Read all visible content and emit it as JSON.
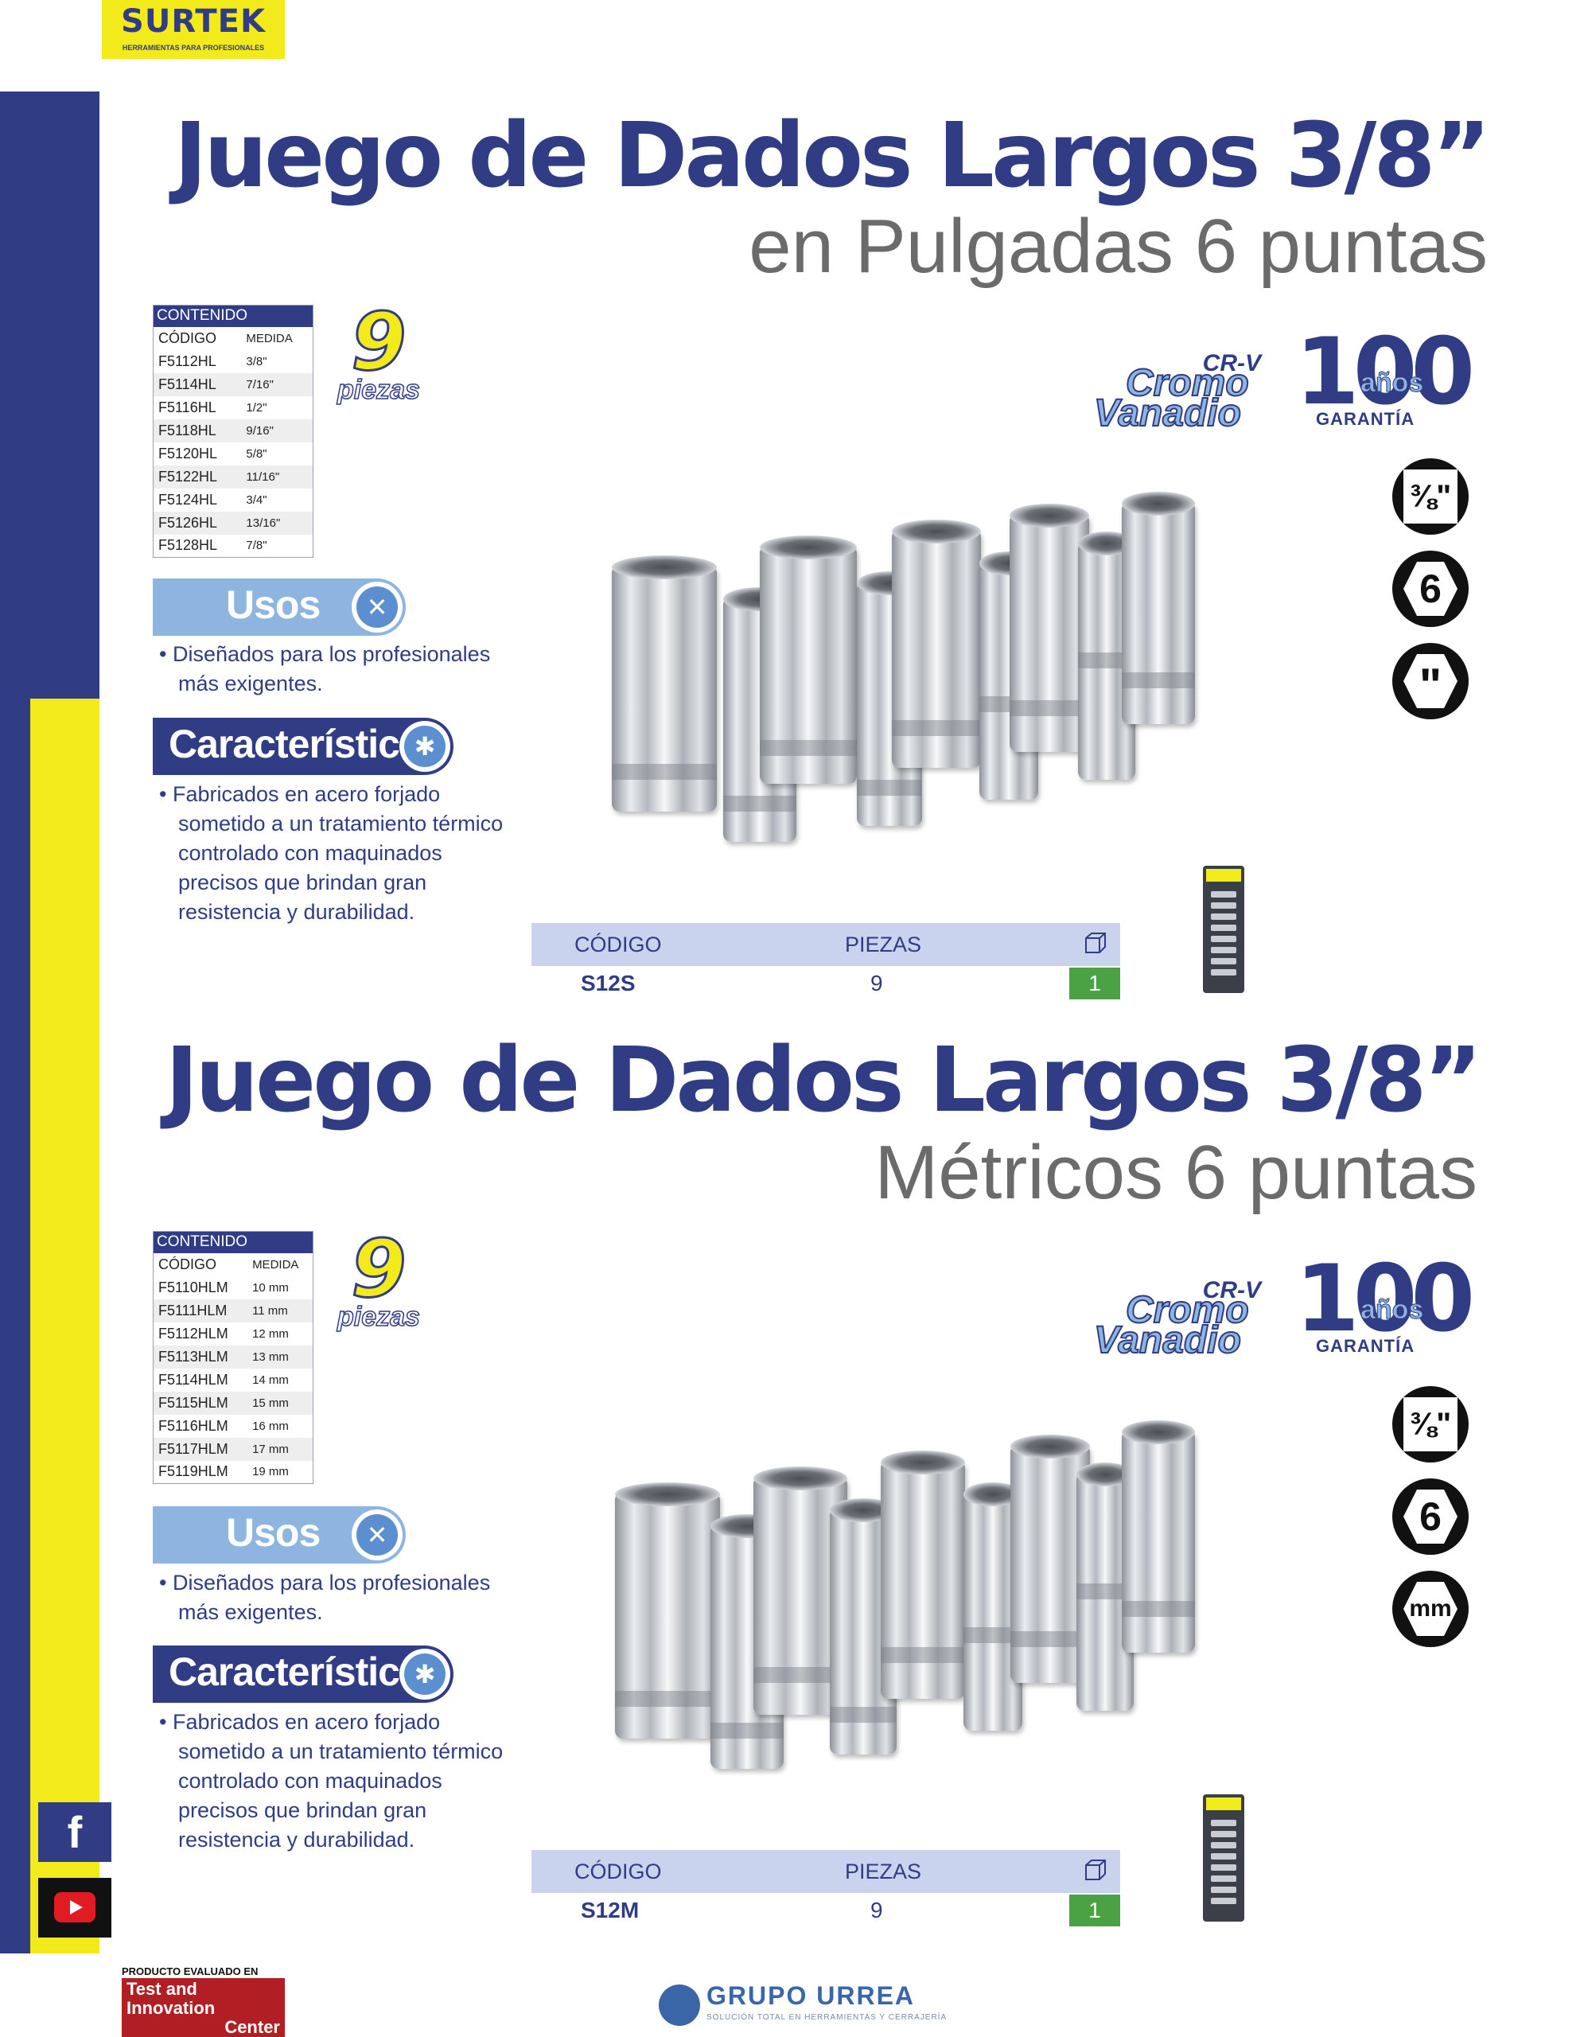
{
  "brand": {
    "name": "SURTEK",
    "tagline": "HERRAMIENTAS PARA PROFESIONALES"
  },
  "sections": [
    {
      "title": "Juego de Dados Largos 3/8”",
      "subtitle": "en Pulgadas 6 puntas",
      "contents_table": {
        "caption": "CONTENIDO",
        "col_code": "CÓDIGO",
        "col_size": "MEDIDA",
        "rows": [
          {
            "code": "F5112HL",
            "size": "3/8\""
          },
          {
            "code": "F5114HL",
            "size": "7/16\""
          },
          {
            "code": "F5116HL",
            "size": "1/2\""
          },
          {
            "code": "F5118HL",
            "size": "9/16\""
          },
          {
            "code": "F5120HL",
            "size": "5/8\""
          },
          {
            "code": "F5122HL",
            "size": "11/16\""
          },
          {
            "code": "F5124HL",
            "size": "3/4\""
          },
          {
            "code": "F5126HL",
            "size": "13/16\""
          },
          {
            "code": "F5128HL",
            "size": "7/8\""
          }
        ]
      },
      "pieces_badge": {
        "number": "9",
        "label": "piezas"
      },
      "usos": {
        "heading": "Usos",
        "text": "• Diseñados para los profesionales más exigentes."
      },
      "caracteristicas": {
        "heading": "Características",
        "text": "• Fabricados en acero forjado sometido a un tratamiento térmico controlado con maquinados precisos que brindan gran resistencia y durabilidad."
      },
      "material_badge": {
        "top": "CR-V",
        "line1": "Cromo",
        "line2": "Vanadio"
      },
      "warranty_badge": {
        "number": "100",
        "years": "años",
        "label": "GARANTÍA"
      },
      "spec_icons": [
        {
          "icon": "drive-size-icon",
          "text": "⅜\""
        },
        {
          "icon": "six-point-icon",
          "text": "6"
        },
        {
          "icon": "inch-unit-icon",
          "text": "\""
        }
      ],
      "order_info": {
        "col_code": "CÓDIGO",
        "col_pieces": "PIEZAS",
        "code": "S12S",
        "pieces": "9",
        "box_qty": "1"
      }
    },
    {
      "title": "Juego de Dados Largos 3/8”",
      "subtitle": "Métricos 6 puntas",
      "contents_table": {
        "caption": "CONTENIDO",
        "col_code": "CÓDIGO",
        "col_size": "MEDIDA",
        "rows": [
          {
            "code": "F5110HLM",
            "size": "10 mm"
          },
          {
            "code": "F5111HLM",
            "size": "11 mm"
          },
          {
            "code": "F5112HLM",
            "size": "12 mm"
          },
          {
            "code": "F5113HLM",
            "size": "13 mm"
          },
          {
            "code": "F5114HLM",
            "size": "14 mm"
          },
          {
            "code": "F5115HLM",
            "size": "15 mm"
          },
          {
            "code": "F5116HLM",
            "size": "16 mm"
          },
          {
            "code": "F5117HLM",
            "size": "17 mm"
          },
          {
            "code": "F5119HLM",
            "size": "19 mm"
          }
        ]
      },
      "pieces_badge": {
        "number": "9",
        "label": "piezas"
      },
      "usos": {
        "heading": "Usos",
        "text": "• Diseñados para los profesionales más exigentes."
      },
      "caracteristicas": {
        "heading": "Características",
        "text": "• Fabricados en acero forjado sometido a un tratamiento térmico controlado con maquinados precisos que brindan gran resistencia y durabilidad."
      },
      "material_badge": {
        "top": "CR-V",
        "line1": "Cromo",
        "line2": "Vanadio"
      },
      "warranty_badge": {
        "number": "100",
        "years": "años",
        "label": "GARANTÍA"
      },
      "spec_icons": [
        {
          "icon": "drive-size-icon",
          "text": "⅜\""
        },
        {
          "icon": "six-point-icon",
          "text": "6"
        },
        {
          "icon": "metric-unit-icon",
          "text": "mm"
        }
      ],
      "order_info": {
        "col_code": "CÓDIGO",
        "col_pieces": "PIEZAS",
        "code": "S12M",
        "pieces": "9",
        "box_qty": "1"
      }
    }
  ],
  "social": {
    "facebook": "f",
    "youtube": "youtube-icon"
  },
  "footer": {
    "tic_top": "PRODUCTO EVALUADO EN",
    "tic_line1": "Test and Innovation",
    "tic_line2": "Center",
    "urrea_name": "GRUPO URREA",
    "urrea_tag": "SOLUCIÓN TOTAL EN HERRAMIENTAS Y CERRAJERÍA"
  },
  "colors": {
    "navy": "#303c84",
    "yellow": "#f3ea1c",
    "light_blue": "#8db5e0",
    "green": "#4aa245",
    "gray_text": "#6b6b6b"
  }
}
